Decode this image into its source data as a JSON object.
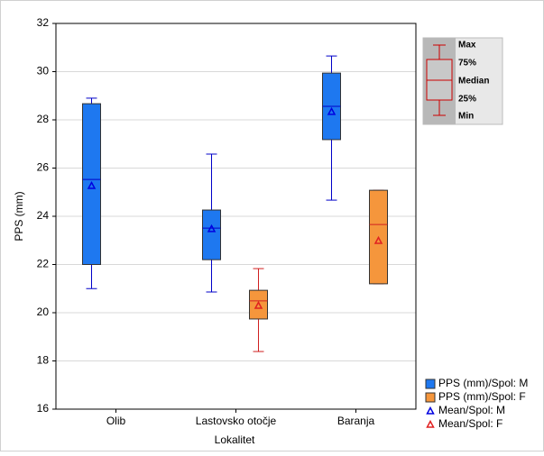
{
  "chart_data": {
    "type": "box",
    "x_label": "Lokalitet",
    "y_label": "PPS (mm)",
    "categories": [
      "Olib",
      "Lastovsko otočje",
      "Baranja"
    ],
    "ylim": [
      16,
      32
    ],
    "yticks": [
      16,
      18,
      20,
      22,
      24,
      26,
      28,
      30,
      32
    ],
    "grid": true,
    "series": [
      {
        "name": "PPS (mm)/Spol: M",
        "color": "#1e78f0",
        "line_color": "#0000c8",
        "min": [
          21.0,
          20.86,
          24.67
        ],
        "q1": [
          22.0,
          22.2,
          27.18
        ],
        "median": [
          25.53,
          23.51,
          28.56
        ],
        "q3": [
          28.67,
          24.26,
          29.94
        ],
        "max": [
          28.9,
          26.58,
          30.65
        ]
      },
      {
        "name": "PPS (mm)/Spol: F",
        "color": "#f5963c",
        "line_color": "#d02020",
        "min": [
          null,
          18.39,
          21.2
        ],
        "q1": [
          null,
          19.74,
          21.2
        ],
        "median": [
          null,
          20.49,
          23.66
        ],
        "q3": [
          null,
          20.93,
          25.08
        ],
        "max": [
          null,
          21.83,
          25.08
        ]
      }
    ],
    "mean_series": [
      {
        "name": "Mean/Spol: M",
        "color": "#0000e0",
        "values": [
          25.27,
          23.48,
          28.34
        ]
      },
      {
        "name": "Mean/Spol: F",
        "color": "#e02020",
        "values": [
          null,
          20.3,
          22.99
        ]
      }
    ],
    "key_labels": [
      "Max",
      "75%",
      "Median",
      "25%",
      "Min"
    ]
  }
}
